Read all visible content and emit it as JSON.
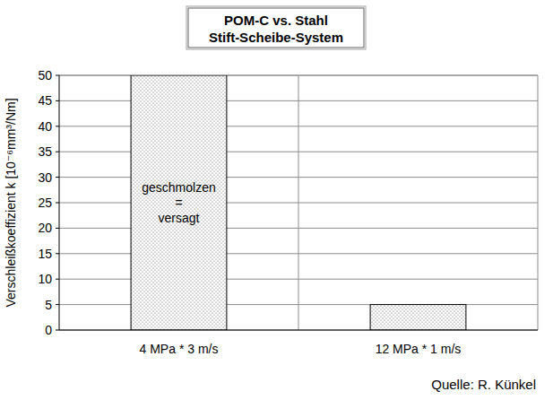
{
  "chart_data": {
    "type": "bar",
    "title": "POM-C vs. Stahl",
    "subtitle": "Stift-Scheibe-System",
    "y_label": "Verschleißkoeffizient k [10⁻⁶mm³/Nm]",
    "categories": [
      "4 MPa * 3 m/s",
      "12 MPa * 1 m/s"
    ],
    "values": [
      50,
      5
    ],
    "color": "#555555",
    "ylim": [
      0,
      50
    ],
    "yticks": [
      0,
      5,
      10,
      15,
      20,
      25,
      30,
      35,
      40,
      45,
      50
    ],
    "grid": true,
    "annotation": [
      "geschmolzen",
      "=",
      "versagt"
    ],
    "source": "Quelle: R. Künkel"
  }
}
